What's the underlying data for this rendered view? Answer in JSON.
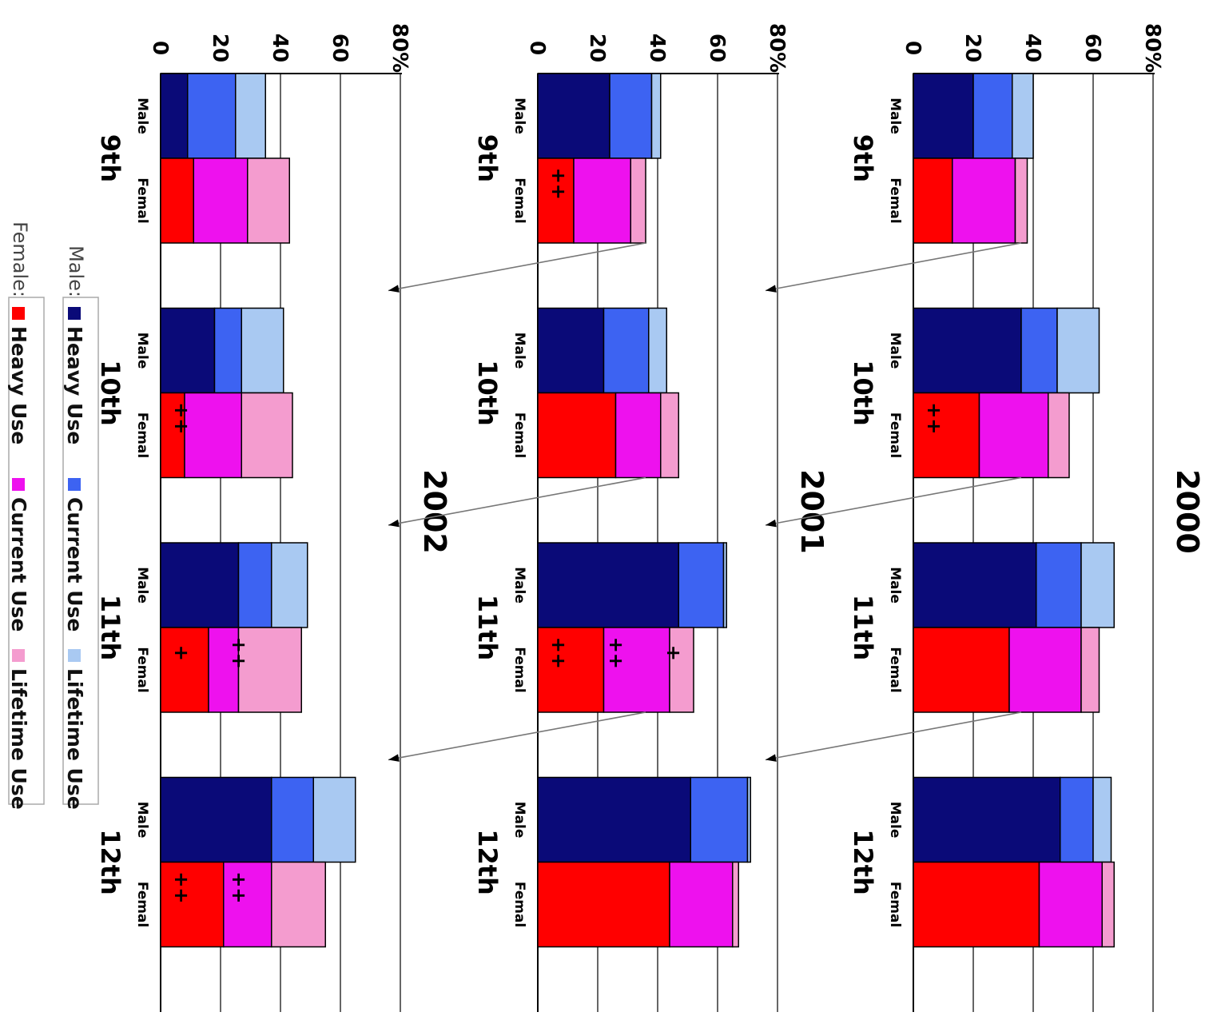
{
  "colors": {
    "male_heavy": "#0a0a78",
    "male_current": "#3d63f2",
    "male_lifetime": "#a9c9f2",
    "female_heavy": "#ff0000",
    "female_current": "#ee11ee",
    "female_lifetime": "#f49ccf",
    "grid": "#333333",
    "axis": "#000000"
  },
  "legend": {
    "male_label": "Male:",
    "female_label": "Female:",
    "heavy": "Heavy Use",
    "current": "Current Use",
    "lifetime": "Lifetime Use"
  },
  "chart_data": [
    {
      "type": "bar",
      "stacked": true,
      "orientation": "rotated-90-clockwise",
      "title": "2000",
      "yticks": [
        "0",
        "20",
        "40",
        "60",
        "80%"
      ],
      "ylim": [
        0,
        80
      ],
      "grid": true,
      "categories": [
        "9th",
        "10th",
        "11th",
        "12th"
      ],
      "gender_labels": [
        "Male",
        "Femal"
      ],
      "male": {
        "heavy": [
          20,
          36,
          41,
          49
        ],
        "current": [
          33,
          48,
          56,
          60
        ],
        "lifetime": [
          40,
          62,
          67,
          66
        ]
      },
      "female": {
        "heavy": [
          13,
          22,
          32,
          42
        ],
        "current": [
          34,
          45,
          56,
          63
        ],
        "lifetime": [
          38,
          52,
          62,
          67
        ]
      },
      "annotations": [
        {
          "grade": "10th",
          "gender": "female",
          "text": "++"
        }
      ]
    },
    {
      "type": "bar",
      "stacked": true,
      "orientation": "rotated-90-clockwise",
      "title": "2001",
      "yticks": [
        "0",
        "20",
        "40",
        "60",
        "80%"
      ],
      "ylim": [
        0,
        80
      ],
      "grid": true,
      "categories": [
        "9th",
        "10th",
        "11th",
        "12th"
      ],
      "gender_labels": [
        "Male",
        "Femal"
      ],
      "male": {
        "heavy": [
          24,
          22,
          47,
          51
        ],
        "current": [
          38,
          37,
          62,
          70
        ],
        "lifetime": [
          41,
          43,
          63,
          71
        ]
      },
      "female": {
        "heavy": [
          12,
          26,
          22,
          44
        ],
        "current": [
          31,
          41,
          44,
          65
        ],
        "lifetime": [
          36,
          47,
          52,
          67
        ]
      },
      "annotations": [
        {
          "grade": "9th",
          "gender": "female",
          "text": "++"
        },
        {
          "grade": "11th",
          "gender": "female",
          "text": "++"
        },
        {
          "grade": "11th",
          "gender": "female",
          "text": "++"
        },
        {
          "grade": "11th",
          "gender": "female",
          "text": "+"
        }
      ]
    },
    {
      "type": "bar",
      "stacked": true,
      "orientation": "rotated-90-clockwise",
      "title": "2002",
      "yticks": [
        "0",
        "20",
        "40",
        "60",
        "80%"
      ],
      "ylim": [
        0,
        80
      ],
      "grid": true,
      "categories": [
        "9th",
        "10th",
        "11th",
        "12th"
      ],
      "gender_labels": [
        "Male",
        "Femal"
      ],
      "male": {
        "heavy": [
          9,
          18,
          26,
          37
        ],
        "current": [
          25,
          27,
          37,
          51
        ],
        "lifetime": [
          35,
          41,
          49,
          65
        ]
      },
      "female": {
        "heavy": [
          11,
          8,
          16,
          21
        ],
        "current": [
          29,
          27,
          26,
          37
        ],
        "lifetime": [
          43,
          44,
          47,
          55
        ]
      },
      "annotations": [
        {
          "grade": "10th",
          "gender": "female",
          "text": "++"
        },
        {
          "grade": "11th",
          "gender": "female",
          "text": "+"
        },
        {
          "grade": "11th",
          "gender": "female",
          "text": "++"
        },
        {
          "grade": "12th",
          "gender": "female",
          "text": "++"
        },
        {
          "grade": "12th",
          "gender": "female",
          "text": "++"
        }
      ]
    }
  ]
}
